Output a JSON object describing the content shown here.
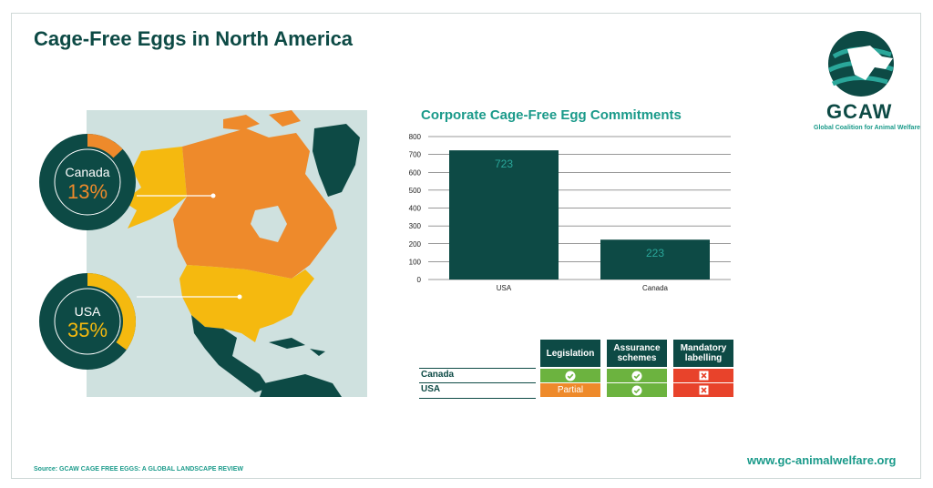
{
  "title": "Cage-Free Eggs in North America",
  "logo": {
    "word": "GCAW",
    "subtitle": "Global Coalition for Animal Welfare"
  },
  "map": {
    "regions": [
      {
        "name": "Canada",
        "percent": 13,
        "label": "Canada",
        "value_text": "13%",
        "color": "#ee8a2b"
      },
      {
        "name": "USA",
        "percent": 35,
        "label": "USA",
        "value_text": "35%",
        "color": "#f5b90f"
      }
    ]
  },
  "chart_data": {
    "type": "bar",
    "title": "Corporate Cage-Free Egg Commitments",
    "categories": [
      "USA",
      "Canada"
    ],
    "values": [
      723,
      223
    ],
    "data_labels": [
      "723",
      "223"
    ],
    "ylim": [
      0,
      800
    ],
    "yticks": [
      "0",
      "100",
      "200",
      "300",
      "400",
      "500",
      "600",
      "700",
      "800"
    ],
    "grid": true,
    "bar_color": "#0d4a45",
    "label_color": "#2aa79a"
  },
  "policy_table": {
    "columns": [
      "Legislation",
      "Assurance schemes",
      "Mandatory labelling"
    ],
    "rows": [
      {
        "label": "Canada",
        "cells": [
          {
            "status": "yes",
            "text": ""
          },
          {
            "status": "yes",
            "text": ""
          },
          {
            "status": "no",
            "text": ""
          }
        ]
      },
      {
        "label": "USA",
        "cells": [
          {
            "status": "partial",
            "text": "Partial"
          },
          {
            "status": "yes",
            "text": ""
          },
          {
            "status": "no",
            "text": ""
          }
        ]
      }
    ],
    "colors": {
      "yes": "#6cb33f",
      "partial": "#ee8a2b",
      "no": "#e8432b"
    }
  },
  "source": "Source: GCAW CAGE FREE EGGS: A GLOBAL LANDSCAPE REVIEW",
  "url": "www.gc-animalwelfare.org"
}
